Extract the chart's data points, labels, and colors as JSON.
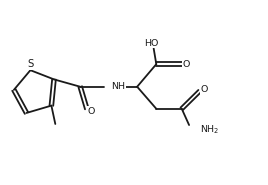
{
  "bg_color": "#ffffff",
  "line_color": "#1a1a1a",
  "line_width": 1.3,
  "text_color": "#1a1a1a",
  "font_size": 6.8,
  "fig_width": 2.68,
  "fig_height": 1.85,
  "dpi": 100,
  "xlim": [
    0,
    10
  ],
  "ylim": [
    0,
    7
  ]
}
